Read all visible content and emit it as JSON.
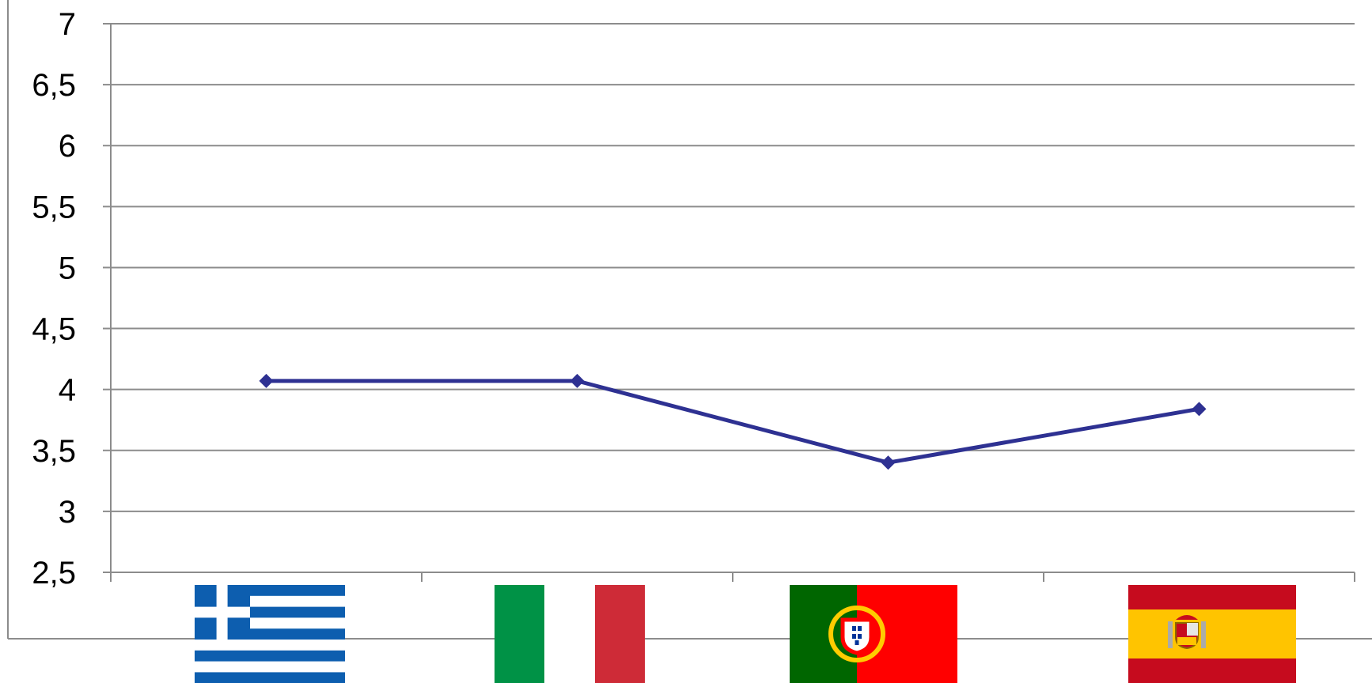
{
  "chart_data": {
    "type": "line",
    "categories": [
      "greece-flag",
      "italy-flag",
      "portugal-flag",
      "spain-flag"
    ],
    "series": [
      {
        "values": [
          4.07,
          4.07,
          3.4,
          3.84
        ]
      }
    ],
    "y_ticks": [
      "7",
      "6,5",
      "6",
      "5,5",
      "5",
      "4,5",
      "4",
      "3,5",
      "3",
      "2,5"
    ],
    "ylim": [
      2.5,
      7
    ],
    "ytick_step": 0.5,
    "grid": true,
    "legend": "none",
    "colors": {
      "line": "#2e3192",
      "gridline": "#8c8c8c",
      "axis": "#8c8c8c"
    },
    "flags": {
      "greece": {
        "icon": "greece-flag-icon",
        "blue": "#0d5eaf",
        "white": "#ffffff"
      },
      "italy": {
        "icon": "italy-flag-icon",
        "green": "#009246",
        "white": "#ffffff",
        "red": "#ce2b37"
      },
      "portugal": {
        "icon": "portugal-flag-icon",
        "green": "#006600",
        "red": "#ff0000",
        "yellow": "#ffcc00"
      },
      "spain": {
        "icon": "spain-flag-icon",
        "red": "#c60b1e",
        "yellow": "#ffc400"
      }
    }
  }
}
